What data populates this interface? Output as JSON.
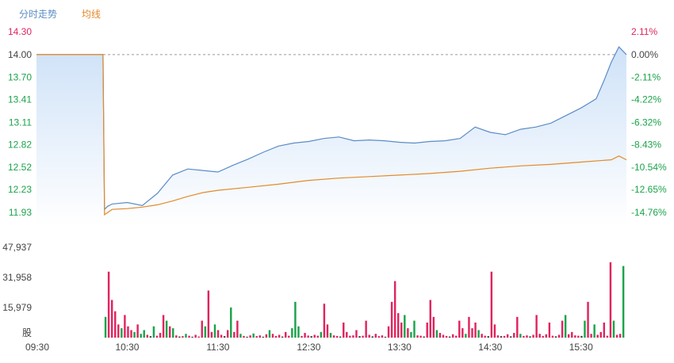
{
  "legend": {
    "price_label": "分时走势",
    "avg_label": "均线"
  },
  "colors": {
    "price_line": "#5b8cc6",
    "avg_line": "#e38a2a",
    "up": "#e0245e",
    "down": "#1aa34a",
    "neutral": "#444444",
    "grid": "#999999",
    "fill_top": "#cfe2f8",
    "fill_bottom": "#ffffff"
  },
  "chart_data": [
    {
      "type": "line",
      "series": [
        {
          "name": "分时走势",
          "x": [
            "09:30",
            "10:14",
            "10:15",
            "10:17",
            "10:20",
            "10:30",
            "10:40",
            "10:50",
            "11:00",
            "11:10",
            "11:20",
            "11:30",
            "11:40",
            "11:50",
            "12:00",
            "12:10",
            "12:20",
            "12:30",
            "12:40",
            "12:50",
            "13:00",
            "13:10",
            "13:20",
            "13:30",
            "13:40",
            "13:50",
            "14:00",
            "14:10",
            "14:20",
            "14:30",
            "14:40",
            "14:50",
            "15:00",
            "15:10",
            "15:20",
            "15:30",
            "15:40",
            "15:45",
            "15:50",
            "15:55",
            "16:00"
          ],
          "values": [
            14.0,
            14.0,
            11.97,
            12.01,
            12.04,
            12.06,
            12.02,
            12.18,
            12.42,
            12.5,
            12.48,
            12.46,
            12.55,
            12.63,
            12.72,
            12.8,
            12.84,
            12.86,
            12.9,
            12.92,
            12.87,
            12.88,
            12.87,
            12.85,
            12.84,
            12.86,
            12.87,
            12.9,
            13.05,
            12.98,
            12.95,
            13.02,
            13.05,
            13.1,
            13.2,
            13.3,
            13.42,
            13.65,
            13.9,
            14.1,
            14.0
          ]
        },
        {
          "name": "均线",
          "x": [
            "09:30",
            "10:14",
            "10:15",
            "10:20",
            "10:30",
            "10:40",
            "10:50",
            "11:00",
            "11:10",
            "11:20",
            "11:30",
            "11:50",
            "12:10",
            "12:30",
            "12:50",
            "13:10",
            "13:30",
            "13:50",
            "14:10",
            "14:30",
            "14:50",
            "15:10",
            "15:30",
            "15:50",
            "15:55",
            "16:00"
          ],
          "values": [
            14.0,
            14.0,
            11.9,
            11.97,
            11.98,
            12.0,
            12.03,
            12.08,
            12.14,
            12.19,
            12.22,
            12.26,
            12.3,
            12.35,
            12.38,
            12.4,
            12.42,
            12.44,
            12.47,
            12.51,
            12.54,
            12.56,
            12.59,
            12.62,
            12.67,
            12.62
          ]
        }
      ],
      "y_ticks": [
        "14.30",
        "14.00",
        "13.70",
        "13.41",
        "13.11",
        "12.82",
        "12.52",
        "12.23",
        "11.93"
      ],
      "pct_ticks": [
        "2.11%",
        "0.00%",
        "-2.11%",
        "-4.22%",
        "-6.32%",
        "-8.43%",
        "-10.54%",
        "-12.65%",
        "-14.76%"
      ],
      "ylim": [
        11.93,
        14.3
      ],
      "reference_price": 14.0,
      "x_range": [
        "09:30",
        "16:00"
      ]
    },
    {
      "type": "bar",
      "y_ticks": [
        "47,937",
        "31,958",
        "15,979"
      ],
      "y_unit": "股",
      "ylim": [
        0,
        47937
      ],
      "x_ticks": [
        "09:30",
        "10:30",
        "11:30",
        "12:30",
        "13:30",
        "14:30",
        "15:30"
      ],
      "volume_start": "10:15",
      "bars": [
        [
          11000,
          "down"
        ],
        [
          35000,
          "up"
        ],
        [
          20000,
          "up"
        ],
        [
          14000,
          "up"
        ],
        [
          7000,
          "up"
        ],
        [
          5000,
          "down"
        ],
        [
          12000,
          "up"
        ],
        [
          6000,
          "up"
        ],
        [
          4000,
          "up"
        ],
        [
          3000,
          "down"
        ],
        [
          7000,
          "up"
        ],
        [
          2000,
          "down"
        ],
        [
          4000,
          "down"
        ],
        [
          1500,
          "up"
        ],
        [
          800,
          "neutral"
        ],
        [
          6000,
          "down"
        ],
        [
          1000,
          "up"
        ],
        [
          2500,
          "up"
        ],
        [
          12000,
          "up"
        ],
        [
          9000,
          "down"
        ],
        [
          6000,
          "up"
        ],
        [
          5000,
          "down"
        ],
        [
          1200,
          "up"
        ],
        [
          600,
          "neutral"
        ],
        [
          800,
          "up"
        ],
        [
          2000,
          "down"
        ],
        [
          1000,
          "up"
        ],
        [
          500,
          "neutral"
        ],
        [
          1500,
          "up"
        ],
        [
          600,
          "up"
        ],
        [
          9000,
          "up"
        ],
        [
          6000,
          "down"
        ],
        [
          25000,
          "up"
        ],
        [
          3000,
          "up"
        ],
        [
          7000,
          "down"
        ],
        [
          4000,
          "up"
        ],
        [
          1500,
          "up"
        ],
        [
          800,
          "neutral"
        ],
        [
          4000,
          "up"
        ],
        [
          16000,
          "down"
        ],
        [
          3000,
          "up"
        ],
        [
          9000,
          "up"
        ],
        [
          2000,
          "down"
        ],
        [
          900,
          "up"
        ],
        [
          500,
          "neutral"
        ],
        [
          1200,
          "up"
        ],
        [
          2200,
          "down"
        ],
        [
          800,
          "up"
        ],
        [
          1200,
          "up"
        ],
        [
          500,
          "neutral"
        ],
        [
          1800,
          "up"
        ],
        [
          4000,
          "down"
        ],
        [
          2000,
          "up"
        ],
        [
          900,
          "up"
        ],
        [
          1500,
          "up"
        ],
        [
          600,
          "neutral"
        ],
        [
          3000,
          "up"
        ],
        [
          1000,
          "up"
        ],
        [
          5000,
          "down"
        ],
        [
          19000,
          "down"
        ],
        [
          6000,
          "down"
        ],
        [
          900,
          "up"
        ],
        [
          2500,
          "up"
        ],
        [
          1100,
          "up"
        ],
        [
          800,
          "neutral"
        ],
        [
          1500,
          "up"
        ],
        [
          1000,
          "up"
        ],
        [
          3000,
          "down"
        ],
        [
          18000,
          "up"
        ],
        [
          7000,
          "up"
        ],
        [
          2500,
          "down"
        ],
        [
          1200,
          "up"
        ],
        [
          900,
          "up"
        ],
        [
          600,
          "neutral"
        ],
        [
          8000,
          "up"
        ],
        [
          3000,
          "up"
        ],
        [
          1000,
          "up"
        ],
        [
          1200,
          "up"
        ],
        [
          4000,
          "up"
        ],
        [
          800,
          "neutral"
        ],
        [
          1000,
          "up"
        ],
        [
          9000,
          "up"
        ],
        [
          1500,
          "up"
        ],
        [
          700,
          "neutral"
        ],
        [
          2000,
          "up"
        ],
        [
          800,
          "up"
        ],
        [
          1200,
          "up"
        ],
        [
          500,
          "neutral"
        ],
        [
          6000,
          "up"
        ],
        [
          19000,
          "up"
        ],
        [
          30000,
          "up"
        ],
        [
          13000,
          "up"
        ],
        [
          8000,
          "up"
        ],
        [
          12000,
          "down"
        ],
        [
          5000,
          "up"
        ],
        [
          3000,
          "down"
        ],
        [
          9000,
          "down"
        ],
        [
          1200,
          "up"
        ],
        [
          1000,
          "up"
        ],
        [
          600,
          "neutral"
        ],
        [
          8000,
          "up"
        ],
        [
          20000,
          "up"
        ],
        [
          11000,
          "up"
        ],
        [
          4000,
          "down"
        ],
        [
          2500,
          "up"
        ],
        [
          1500,
          "up"
        ],
        [
          900,
          "up"
        ],
        [
          600,
          "neutral"
        ],
        [
          1800,
          "up"
        ],
        [
          1000,
          "up"
        ],
        [
          9000,
          "up"
        ],
        [
          5000,
          "up"
        ],
        [
          2000,
          "down"
        ],
        [
          11000,
          "up"
        ],
        [
          5000,
          "up"
        ],
        [
          8000,
          "up"
        ],
        [
          4000,
          "down"
        ],
        [
          2000,
          "up"
        ],
        [
          1000,
          "up"
        ],
        [
          800,
          "neutral"
        ],
        [
          35000,
          "up"
        ],
        [
          7000,
          "up"
        ],
        [
          1200,
          "up"
        ],
        [
          800,
          "neutral"
        ],
        [
          900,
          "up"
        ],
        [
          1800,
          "up"
        ],
        [
          700,
          "neutral"
        ],
        [
          2500,
          "up"
        ],
        [
          11000,
          "up"
        ],
        [
          2000,
          "down"
        ],
        [
          900,
          "up"
        ],
        [
          1200,
          "up"
        ],
        [
          700,
          "neutral"
        ],
        [
          1500,
          "up"
        ],
        [
          12000,
          "up"
        ],
        [
          2000,
          "up"
        ],
        [
          900,
          "up"
        ],
        [
          1800,
          "up"
        ],
        [
          8000,
          "up"
        ],
        [
          1000,
          "up"
        ],
        [
          700,
          "neutral"
        ],
        [
          1500,
          "up"
        ],
        [
          9000,
          "up"
        ],
        [
          12000,
          "down"
        ],
        [
          1800,
          "up"
        ],
        [
          3000,
          "up"
        ],
        [
          1200,
          "up"
        ],
        [
          1000,
          "up"
        ],
        [
          900,
          "neutral"
        ],
        [
          9000,
          "down"
        ],
        [
          19000,
          "up"
        ],
        [
          2000,
          "up"
        ],
        [
          7000,
          "down"
        ],
        [
          1500,
          "up"
        ],
        [
          3000,
          "up"
        ],
        [
          8000,
          "up"
        ],
        [
          1000,
          "up"
        ],
        [
          40000,
          "up"
        ],
        [
          9000,
          "down"
        ],
        [
          1500,
          "up"
        ],
        [
          2000,
          "up"
        ],
        [
          38000,
          "down"
        ]
      ]
    }
  ]
}
